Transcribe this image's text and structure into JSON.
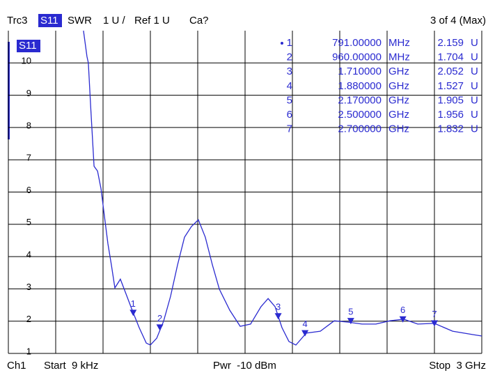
{
  "header": {
    "trace": "Trc3",
    "param": "S11",
    "format": "SWR",
    "scale": "1 U /",
    "ref": "Ref 1 U",
    "cal": "Ca?",
    "status": "3 of 4 (Max)"
  },
  "footer": {
    "channel": "Ch1",
    "start": "Start  9 kHz",
    "power": "Pwr  -10 dBm",
    "stop": "Stop  3 GHz"
  },
  "chart_data": {
    "type": "line",
    "trace_label": "S11",
    "series": [
      {
        "name": "S11",
        "color": "#2a2ad0",
        "x": [
          476,
          498,
          507,
          521,
          543,
          565,
          587,
          609,
          631,
          653,
          675,
          710,
          741,
          785,
          829,
          874,
          900,
          940,
          984,
          1028,
          1072,
          1116,
          1160,
          1204,
          1248,
          1293,
          1337,
          1403,
          1469,
          1535,
          1601,
          1646,
          1690,
          1734,
          1778,
          1822,
          1888,
          1977,
          2065,
          2153,
          2241,
          2329,
          2418,
          2506,
          2594,
          2700,
          2815,
          2947,
          3000
        ],
        "values": [
          11,
          10.2,
          10,
          8.7,
          6.8,
          6.65,
          6.1,
          5.25,
          4.4,
          3.74,
          3.03,
          3.3,
          2.9,
          2.34,
          1.8,
          1.32,
          1.26,
          1.47,
          2.0,
          2.77,
          3.74,
          4.6,
          4.93,
          5.14,
          4.6,
          3.74,
          2.99,
          2.34,
          1.84,
          1.91,
          2.45,
          2.7,
          2.45,
          1.8,
          1.37,
          1.26,
          1.63,
          1.69,
          2.01,
          1.97,
          1.91,
          1.91,
          2.01,
          2.06,
          1.91,
          1.93,
          1.69,
          1.58,
          1.54
        ]
      }
    ],
    "xlim": [
      0.009,
      3000
    ],
    "ylim": [
      1,
      11
    ],
    "yticks": [
      1,
      2,
      3,
      4,
      5,
      6,
      7,
      8,
      9,
      10
    ],
    "grid": true,
    "markers": [
      {
        "name": "1",
        "active": true,
        "x": 791,
        "x_label": "791.00000",
        "x_unit": "MHz",
        "value": 2.159,
        "value_unit": "U"
      },
      {
        "name": "2",
        "active": false,
        "x": 960,
        "x_label": "960.00000",
        "x_unit": "MHz",
        "value": 1.704,
        "value_unit": "U"
      },
      {
        "name": "3",
        "active": false,
        "x": 1710,
        "x_label": "1.710000",
        "x_unit": "GHz",
        "value": 2.052,
        "value_unit": "U"
      },
      {
        "name": "4",
        "active": false,
        "x": 1880,
        "x_label": "1.880000",
        "x_unit": "GHz",
        "value": 1.527,
        "value_unit": "U"
      },
      {
        "name": "5",
        "active": false,
        "x": 2170,
        "x_label": "2.170000",
        "x_unit": "GHz",
        "value": 1.905,
        "value_unit": "U"
      },
      {
        "name": "6",
        "active": false,
        "x": 2500,
        "x_label": "2.500000",
        "x_unit": "GHz",
        "value": 1.956,
        "value_unit": "U"
      },
      {
        "name": "7",
        "active": false,
        "x": 2700,
        "x_label": "2.700000",
        "x_unit": "GHz",
        "value": 1.832,
        "value_unit": "U"
      }
    ]
  }
}
